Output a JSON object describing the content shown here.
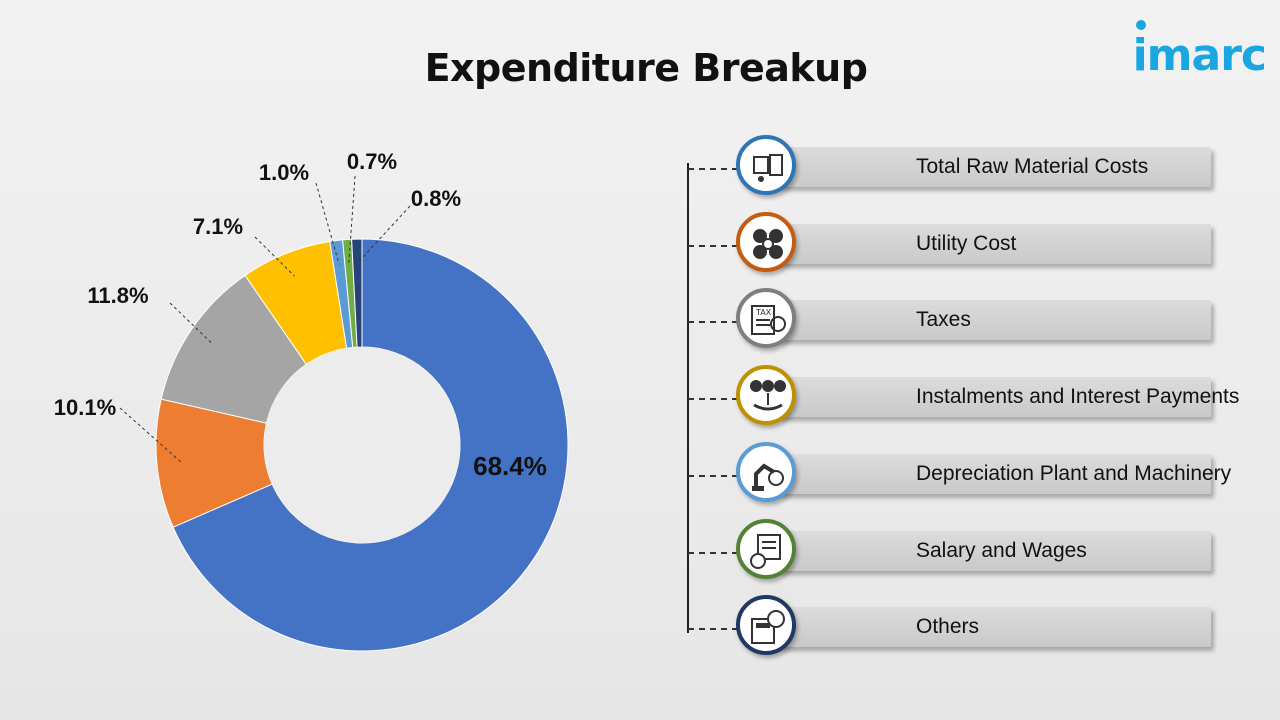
{
  "header": {
    "title": "Expenditure Breakup",
    "brand": "imarc"
  },
  "chart_data": {
    "type": "pie",
    "variant": "donut",
    "title": "Expenditure Breakup",
    "slices": [
      {
        "label": "Total Raw Material Costs",
        "value": 68.4,
        "display": "68.4%",
        "color": "#4472C4",
        "icon": "raw-material-icon",
        "ring": "#2E75B6"
      },
      {
        "label": "Utility Cost",
        "value": 10.1,
        "display": "10.1%",
        "color": "#ED7D31",
        "icon": "utility-icon",
        "ring": "#C55A11"
      },
      {
        "label": "Taxes",
        "value": 11.8,
        "display": "11.8%",
        "color": "#A5A5A5",
        "icon": "tax-icon",
        "ring": "#7F7F7F"
      },
      {
        "label": "Instalments and Interest Payments",
        "value": 7.1,
        "display": "7.1%",
        "color": "#FFC000",
        "icon": "interest-payment-icon",
        "ring": "#BF9000"
      },
      {
        "label": "Depreciation Plant and Machinery",
        "value": 1.0,
        "display": "1.0%",
        "color": "#5B9BD5",
        "icon": "machinery-icon",
        "ring": "#5B9BD5"
      },
      {
        "label": "Salary and Wages",
        "value": 0.7,
        "display": "0.7%",
        "color": "#70AD47",
        "icon": "salary-icon",
        "ring": "#548235"
      },
      {
        "label": "Others",
        "value": 0.8,
        "display": "0.8%",
        "color": "#264478",
        "icon": "others-icon",
        "ring": "#203864"
      }
    ],
    "legend_placement": "right"
  }
}
